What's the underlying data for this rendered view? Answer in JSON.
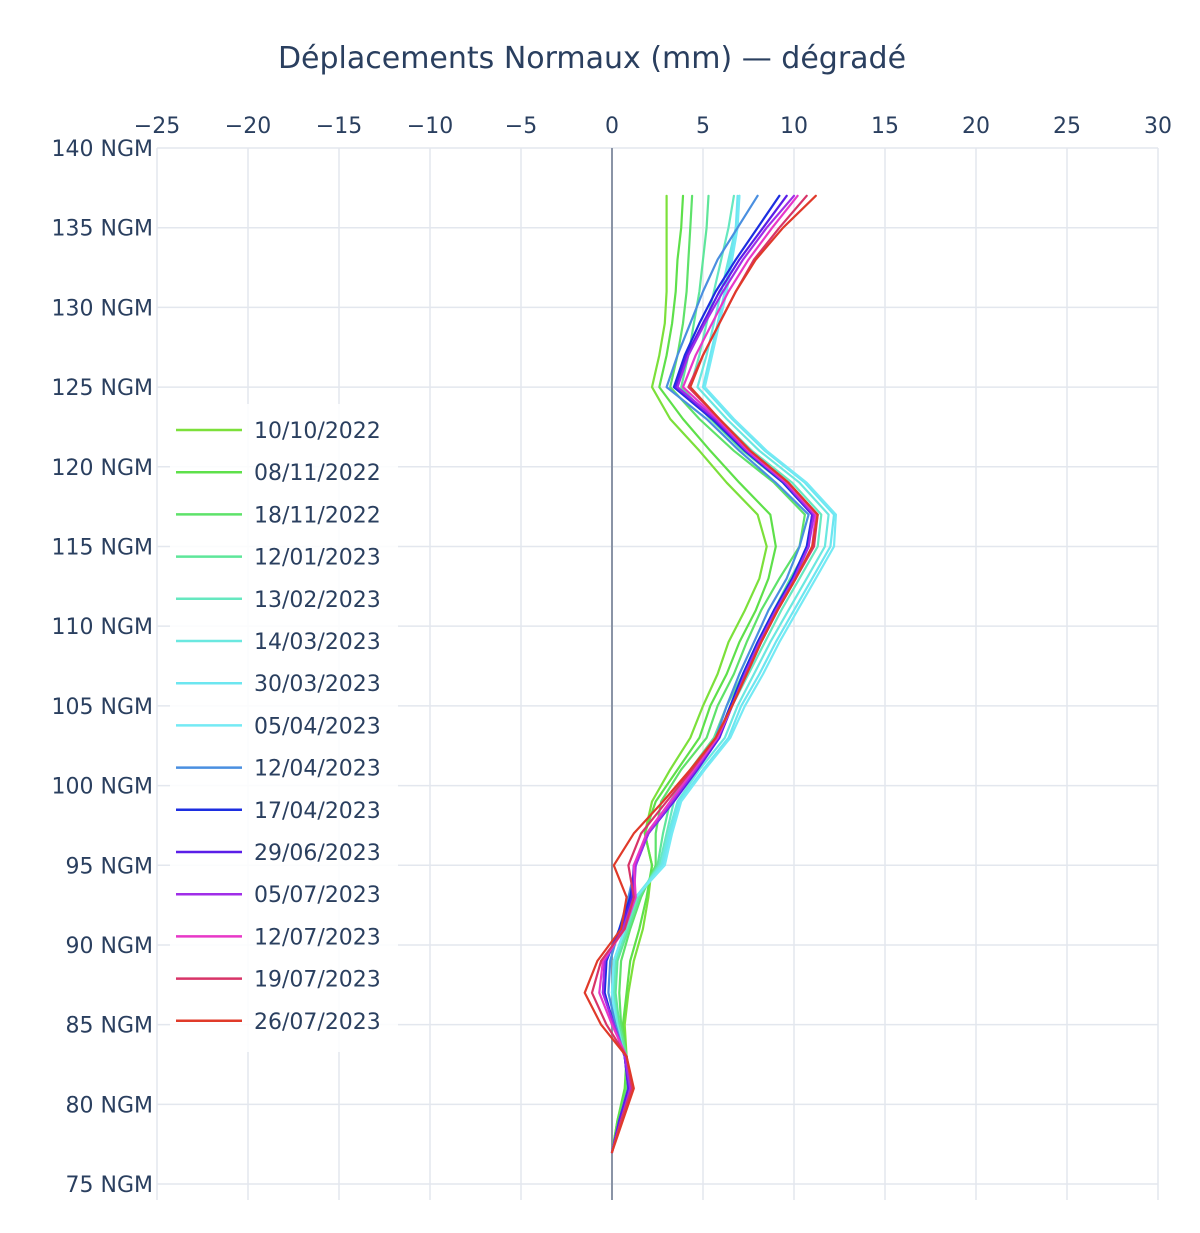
{
  "chart_data": {
    "type": "line",
    "title": "Déplacements Normaux (mm) — dégradé",
    "xlabel": "",
    "ylabel": "",
    "xlim": [
      -25,
      30
    ],
    "ylim": [
      74,
      140
    ],
    "x_ticks": [
      -25,
      -20,
      -15,
      -10,
      -5,
      0,
      5,
      10,
      15,
      20,
      25,
      30
    ],
    "x_tick_labels": [
      "−25",
      "−20",
      "−15",
      "−10",
      "−5",
      "0",
      "5",
      "10",
      "15",
      "20",
      "25",
      "30"
    ],
    "y_ticks": [
      75,
      80,
      85,
      90,
      95,
      100,
      105,
      110,
      115,
      120,
      125,
      130,
      135,
      140
    ],
    "y_tick_labels": [
      "75 NGM",
      "80 NGM",
      "85 NGM",
      "90 NGM",
      "95 NGM",
      "100 NGM",
      "105 NGM",
      "110 NGM",
      "115 NGM",
      "120 NGM",
      "125 NGM",
      "130 NGM",
      "135 NGM",
      "140 NGM"
    ],
    "x_axis_position": "top",
    "grid": true,
    "legend_position": "left-inside",
    "depth_levels": [
      77,
      79,
      81,
      83,
      85,
      87,
      89,
      91,
      93,
      95,
      97,
      99,
      101,
      103,
      105,
      107,
      109,
      111,
      113,
      115,
      117,
      119,
      121,
      123,
      125,
      127,
      129,
      131,
      133,
      135,
      137
    ],
    "series": [
      {
        "name": "10/10/2022",
        "color": "#7ce03a",
        "values": [
          0.0,
          0.3,
          0.8,
          0.8,
          0.7,
          0.9,
          1.2,
          1.7,
          2.0,
          2.2,
          1.8,
          2.2,
          3.2,
          4.3,
          5.0,
          5.8,
          6.4,
          7.3,
          8.1,
          8.5,
          8.0,
          6.3,
          4.8,
          3.2,
          2.2,
          2.6,
          2.9,
          3.0,
          3.0,
          3.0,
          3.0
        ]
      },
      {
        "name": "08/11/2022",
        "color": "#5ee04a",
        "values": [
          0.0,
          0.3,
          0.7,
          0.8,
          0.6,
          0.8,
          1.0,
          1.5,
          1.9,
          2.2,
          1.8,
          2.4,
          3.6,
          4.8,
          5.4,
          6.3,
          7.0,
          7.9,
          8.6,
          9.0,
          8.7,
          7.0,
          5.4,
          3.9,
          2.6,
          3.0,
          3.3,
          3.5,
          3.6,
          3.8,
          3.9
        ]
      },
      {
        "name": "18/11/2022",
        "color": "#5ee26a",
        "values": [
          0.0,
          0.4,
          0.8,
          0.8,
          0.5,
          0.4,
          0.5,
          1.0,
          1.6,
          2.4,
          2.4,
          2.7,
          3.8,
          5.2,
          5.8,
          6.7,
          7.4,
          8.2,
          9.2,
          10.3,
          10.6,
          8.9,
          6.7,
          4.8,
          3.2,
          3.6,
          3.9,
          4.1,
          4.2,
          4.3,
          4.4
        ]
      },
      {
        "name": "12/01/2023",
        "color": "#5ee69a",
        "values": [
          0.0,
          0.4,
          0.9,
          0.8,
          0.4,
          0.2,
          0.3,
          0.9,
          1.5,
          2.5,
          2.8,
          3.2,
          4.3,
          5.6,
          6.3,
          7.2,
          8.0,
          8.9,
          9.8,
          10.8,
          11.0,
          9.4,
          7.2,
          5.4,
          3.8,
          4.2,
          4.5,
          4.8,
          5.0,
          5.2,
          5.3
        ]
      },
      {
        "name": "13/02/2023",
        "color": "#66e8c0",
        "values": [
          0.0,
          0.4,
          0.9,
          0.7,
          0.3,
          0.1,
          0.2,
          0.8,
          1.4,
          2.6,
          3.0,
          3.4,
          4.6,
          5.9,
          6.6,
          7.5,
          8.4,
          9.3,
          10.3,
          11.3,
          11.5,
          9.9,
          7.7,
          5.9,
          4.3,
          4.8,
          5.2,
          5.6,
          6.0,
          6.4,
          6.7
        ]
      },
      {
        "name": "14/03/2023",
        "color": "#6ae8e0",
        "values": [
          0.0,
          0.4,
          0.9,
          0.7,
          0.3,
          0.0,
          0.1,
          0.7,
          1.3,
          2.7,
          3.1,
          3.6,
          4.8,
          6.2,
          6.9,
          7.8,
          8.7,
          9.7,
          10.7,
          11.7,
          11.9,
          10.3,
          8.1,
          6.3,
          4.7,
          5.2,
          5.6,
          6.0,
          6.4,
          6.8,
          7.0
        ]
      },
      {
        "name": "30/03/2023",
        "color": "#6ce6f0",
        "values": [
          0.0,
          0.5,
          1.0,
          0.7,
          0.2,
          0.0,
          0.1,
          0.7,
          1.3,
          2.8,
          3.2,
          3.7,
          5.0,
          6.4,
          7.1,
          8.1,
          9.0,
          10.0,
          11.0,
          12.0,
          12.2,
          10.6,
          8.4,
          6.6,
          5.0,
          5.4,
          5.8,
          6.2,
          6.5,
          6.8,
          6.9
        ]
      },
      {
        "name": "05/04/2023",
        "color": "#74eaf4",
        "values": [
          0.0,
          0.5,
          1.0,
          0.7,
          0.2,
          0.0,
          0.1,
          0.7,
          1.3,
          2.9,
          3.3,
          3.8,
          5.1,
          6.5,
          7.3,
          8.3,
          9.2,
          10.2,
          11.2,
          12.2,
          12.3,
          10.7,
          8.5,
          6.7,
          5.1,
          5.5,
          5.9,
          6.3,
          6.6,
          6.9,
          7.0
        ]
      },
      {
        "name": "12/04/2023",
        "color": "#4a8fe0",
        "values": [
          0.0,
          0.4,
          0.9,
          0.7,
          0.2,
          -0.2,
          -0.1,
          0.4,
          0.9,
          1.3,
          2.0,
          3.3,
          4.5,
          5.7,
          6.3,
          7.0,
          7.8,
          8.6,
          9.6,
          10.3,
          10.8,
          9.0,
          7.0,
          5.2,
          3.0,
          3.6,
          4.3,
          5.0,
          5.8,
          6.9,
          8.0
        ]
      },
      {
        "name": "17/04/2023",
        "color": "#1c2ee0",
        "values": [
          0.0,
          0.4,
          0.9,
          0.7,
          0.1,
          -0.4,
          -0.3,
          0.4,
          1.0,
          1.3,
          2.0,
          3.3,
          4.6,
          5.8,
          6.5,
          7.2,
          8.0,
          8.9,
          9.9,
          10.7,
          11.0,
          9.4,
          7.3,
          5.5,
          3.4,
          4.0,
          4.8,
          5.7,
          6.8,
          8.0,
          9.2
        ]
      },
      {
        "name": "29/06/2023",
        "color": "#5a1ee8",
        "values": [
          0.0,
          0.4,
          0.9,
          0.7,
          0.1,
          -0.5,
          -0.4,
          0.5,
          1.1,
          1.2,
          2.0,
          3.4,
          4.7,
          5.9,
          6.6,
          7.3,
          8.1,
          9.0,
          10.0,
          10.8,
          11.0,
          9.5,
          7.4,
          5.6,
          3.5,
          4.1,
          5.0,
          5.9,
          7.0,
          8.3,
          9.6
        ]
      },
      {
        "name": "05/07/2023",
        "color": "#a02ee8",
        "values": [
          0.0,
          0.5,
          1.0,
          0.7,
          0.1,
          -0.5,
          -0.4,
          0.6,
          1.2,
          1.3,
          2.0,
          3.3,
          4.6,
          5.8,
          6.6,
          7.3,
          8.1,
          9.0,
          10.0,
          10.8,
          11.1,
          9.5,
          7.4,
          5.7,
          3.6,
          4.2,
          5.1,
          6.1,
          7.2,
          8.5,
          10.0
        ]
      },
      {
        "name": "12/07/2023",
        "color": "#e838c8",
        "values": [
          0.0,
          0.5,
          1.1,
          0.8,
          0.0,
          -0.7,
          -0.5,
          0.7,
          1.3,
          1.2,
          1.9,
          3.2,
          4.5,
          5.8,
          6.6,
          7.4,
          8.2,
          9.1,
          10.1,
          11.0,
          11.2,
          9.6,
          7.5,
          5.8,
          3.9,
          4.6,
          5.5,
          6.4,
          7.5,
          8.8,
          10.2
        ]
      },
      {
        "name": "19/07/2023",
        "color": "#d83468",
        "values": [
          0.0,
          0.5,
          1.1,
          0.8,
          -0.3,
          -1.1,
          -0.6,
          0.7,
          1.2,
          0.9,
          1.6,
          3.0,
          4.4,
          5.7,
          6.6,
          7.4,
          8.2,
          9.1,
          10.1,
          11.1,
          11.3,
          9.7,
          7.6,
          5.9,
          4.2,
          5.0,
          5.9,
          6.8,
          7.8,
          9.2,
          10.7
        ]
      },
      {
        "name": "26/07/2023",
        "color": "#e03a2a",
        "values": [
          0.0,
          0.6,
          1.2,
          0.8,
          -0.6,
          -1.5,
          -0.8,
          0.5,
          0.8,
          0.1,
          1.2,
          2.8,
          4.3,
          5.7,
          6.6,
          7.4,
          8.2,
          9.1,
          10.1,
          11.0,
          11.3,
          9.7,
          7.6,
          5.9,
          4.3,
          5.0,
          5.9,
          6.8,
          7.9,
          9.4,
          11.2
        ]
      }
    ]
  }
}
